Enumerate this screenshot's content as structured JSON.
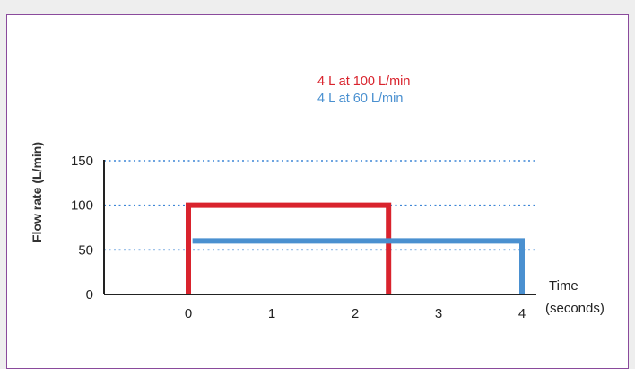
{
  "chart_data": {
    "type": "line",
    "title": "",
    "xlabel_lines": [
      "Time",
      "(seconds)"
    ],
    "ylabel": "Flow rate (L/min)",
    "xlim": [
      -1,
      4
    ],
    "ylim": [
      0,
      150
    ],
    "x_ticks": [
      0,
      1,
      2,
      3,
      4
    ],
    "y_ticks": [
      0,
      50,
      100,
      150
    ],
    "gridlines": [
      50,
      100,
      150
    ],
    "grid": true,
    "legend_position": "top-right",
    "series": [
      {
        "name": "4 L at 100 L/min",
        "color": "#d9232d",
        "points": [
          [
            0,
            0
          ],
          [
            0,
            100
          ],
          [
            2.4,
            100
          ],
          [
            2.4,
            0
          ]
        ]
      },
      {
        "name": "4 L at 60 L/min",
        "color": "#4a90d0",
        "points": [
          [
            0.05,
            60
          ],
          [
            4,
            60
          ],
          [
            4,
            0
          ]
        ]
      }
    ]
  },
  "colors": {
    "border": "#8a4a9c",
    "grid": "#3d86d6",
    "axis": "#222222"
  }
}
